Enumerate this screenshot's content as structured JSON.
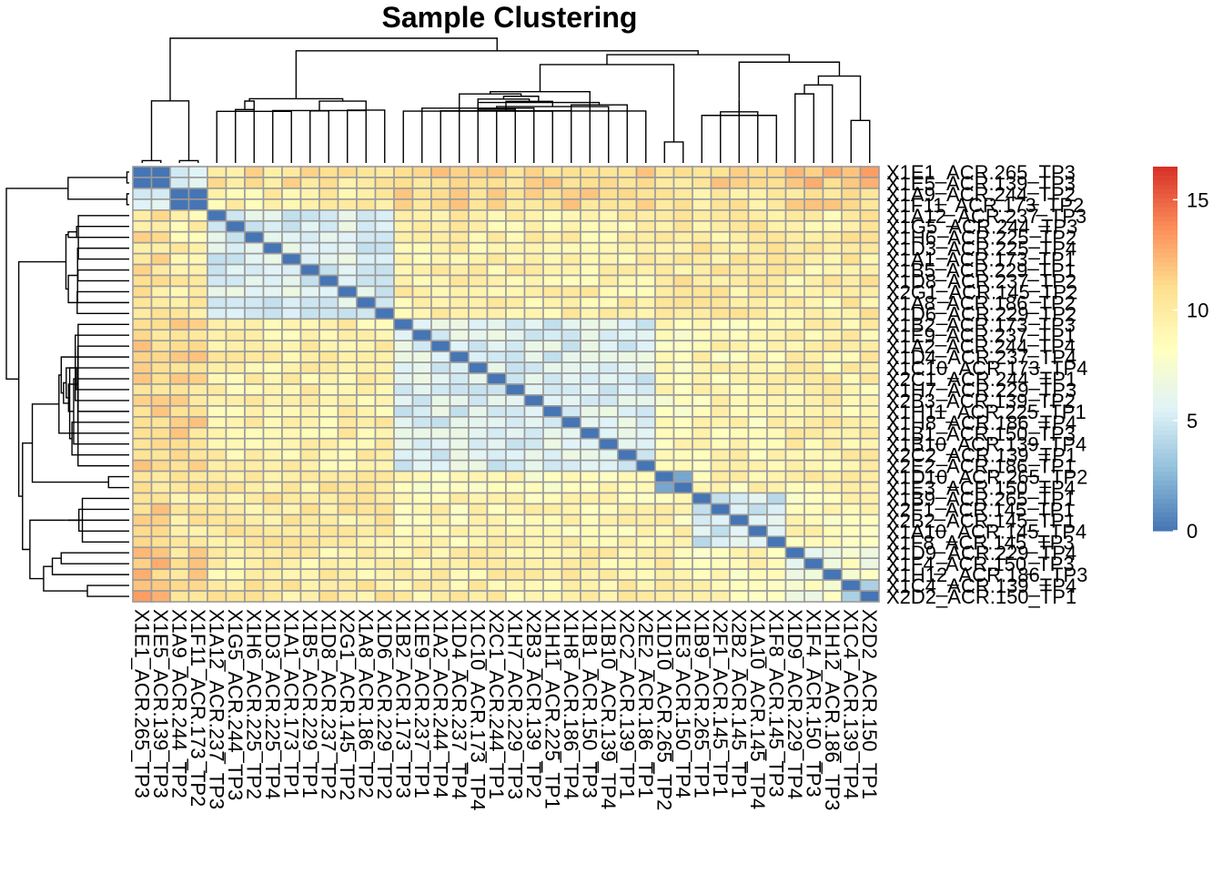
{
  "chart_data": {
    "type": "heatmap",
    "title": "Sample Clustering",
    "labels": [
      "X1E1_ACR.265_TP3",
      "X1E5_ACR.139_TP3",
      "X1A9_ACR.244_TP2",
      "X1F11_ACR.173_TP2",
      "X1A12_ACR.237_TP3",
      "X1G5_ACR.244_TP3",
      "X1H6_ACR.225_TP2",
      "X1D3_ACR.225_TP4",
      "X1A1_ACR.173_TP1",
      "X1B5_ACR.229_TP1",
      "X1D8_ACR.237_TP2",
      "X2G1_ACR.145_TP2",
      "X1A8_ACR.186_TP2",
      "X1D6_ACR.229_TP2",
      "X1B2_ACR.173_TP3",
      "X1E9_ACR.237_TP1",
      "X1A2_ACR.244_TP4",
      "X1D4_ACR.237_TP4",
      "X1C10_ACR.173_TP4",
      "X2C1_ACR.244_TP1",
      "X1H7_ACR.229_TP3",
      "X2B3_ACR.139_TP2",
      "X1H11_ACR.225_TP1",
      "X1H8_ACR.186_TP4",
      "X1B1_ACR.150_TP3",
      "X1B10_ACR.139_TP4",
      "X2C2_ACR.139_TP1",
      "X2E2_ACR.186_TP1",
      "X1D10_ACR.265_TP2",
      "X1E3_ACR.150_TP4",
      "X1B9_ACR.265_TP1",
      "X2F1_ACR.145_TP1",
      "X2B2_ACR.145_TP1",
      "X1A10_ACR.145_TP4",
      "X1F8_ACR.145_TP3",
      "X1D9_ACR.229_TP4",
      "X1F4_ACR.150_TP3",
      "X1H12_ACR.186_TP3",
      "X1C4_ACR.139_TP4",
      "X2D2_ACR.150_TP1"
    ],
    "cluster_groups": [
      0,
      0,
      1,
      1,
      2,
      2,
      2,
      2,
      2,
      2,
      2,
      2,
      2,
      2,
      3,
      3,
      3,
      3,
      3,
      3,
      3,
      3,
      3,
      3,
      3,
      3,
      3,
      3,
      4,
      4,
      5,
      5,
      5,
      5,
      5,
      6,
      6,
      6,
      7,
      7
    ],
    "value_model": "distance = base(group_i, group_j) + pseudo-random noise(i, j); diagonal = 0",
    "color_scale": {
      "min": 0,
      "max": 16.5,
      "colors": [
        "#4575b4",
        "#91bfdb",
        "#e0f3f8",
        "#ffffbf",
        "#fee090",
        "#fc8d59",
        "#d73027"
      ]
    },
    "legend_ticks": [
      0,
      5,
      10,
      15
    ]
  }
}
